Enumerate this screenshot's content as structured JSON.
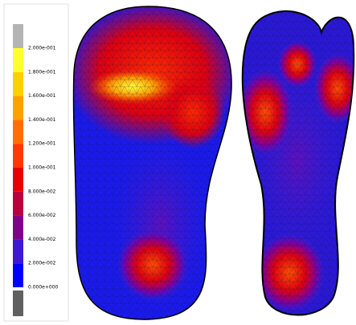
{
  "legend": {
    "labels": [
      "2.000e-001",
      "1.800e-001",
      "1.600e-001",
      "1.400e-001",
      "1.200e-001",
      "1.000e-001",
      "8.000e-002",
      "6.000e-002",
      "4.000e-002",
      "2.000e-002",
      "0.000e+000"
    ],
    "colors": [
      "#ffff30",
      "#ffd000",
      "#ffa000",
      "#ff7000",
      "#ff3a00",
      "#e80000",
      "#b8003c",
      "#80008c",
      "#4018d0",
      "#0000ff"
    ],
    "over_color": "#b4b4b4",
    "under_color": "#606060"
  }
}
